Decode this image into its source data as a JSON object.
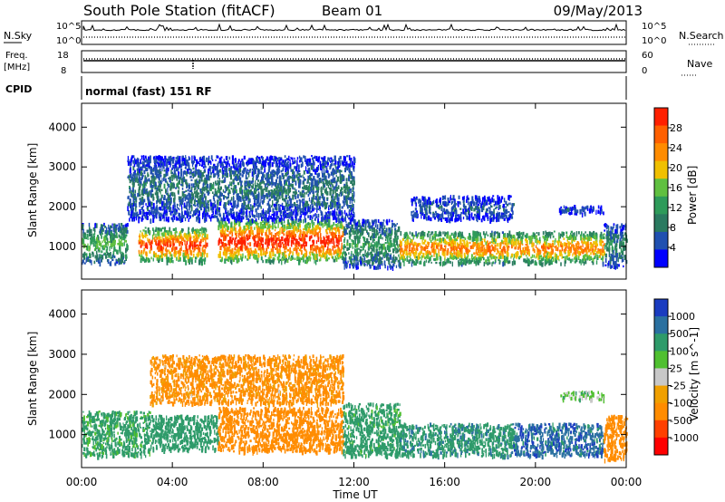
{
  "header": {
    "title": "South Pole Station (fitACF)",
    "beam": "Beam 01",
    "date": "09/May/2013"
  },
  "status_panels": {
    "nsky_label": "N.Sky",
    "nsearch_label": "N.Search",
    "noise_ticks": [
      "10^5",
      "10^0"
    ],
    "freq_label_1": "Freq.",
    "freq_label_2": "[MHz]",
    "freq_ticks": [
      "18",
      "8"
    ],
    "nave_label": "Nave",
    "nave_ticks": [
      "60",
      "0"
    ],
    "cpid_label": "CPID",
    "cpid_value": "normal (fast) 151 RF"
  },
  "x_axis": {
    "label": "Time UT",
    "ticks": [
      "00:00",
      "04:00",
      "08:00",
      "12:00",
      "16:00",
      "20:00",
      "00:00"
    ]
  },
  "colors": {
    "power_scale": [
      "#0000ff",
      "#2050b0",
      "#2a7a60",
      "#2e9b5a",
      "#60c040",
      "#f0c000",
      "#ff8c00",
      "#ff6000",
      "#ff2000"
    ],
    "velocity_scale": [
      "#ff0000",
      "#ff4000",
      "#ff8c00",
      "#f0a000",
      "#c8c8c8",
      "#50c030",
      "#2e9b6a",
      "#2a70a0",
      "#1a3cc0"
    ]
  },
  "chart_data": [
    {
      "type": "heatmap",
      "name": "power",
      "ylabel": "Slant Range [km]",
      "xlabel": "Time UT",
      "x_range_hours": [
        0,
        24
      ],
      "ylim": [
        180,
        4600
      ],
      "y_ticks": [
        "1000",
        "2000",
        "3000",
        "4000"
      ],
      "colorbar": {
        "label": "Power [dB]",
        "ticks": [
          "28",
          "24",
          "20",
          "16",
          "12",
          "8",
          "4"
        ],
        "range": [
          0,
          32
        ]
      },
      "echo_bands": [
        {
          "t_start": 0.0,
          "t_end": 2.0,
          "range_low": 600,
          "range_high": 1600,
          "power_db": 14
        },
        {
          "t_start": 2.5,
          "t_end": 5.5,
          "range_low": 650,
          "range_high": 1500,
          "power_db": 28
        },
        {
          "t_start": 6.0,
          "t_end": 11.5,
          "range_low": 650,
          "range_high": 1700,
          "power_db": 30
        },
        {
          "t_start": 11.5,
          "t_end": 14.0,
          "range_low": 500,
          "range_high": 1700,
          "power_db": 12
        },
        {
          "t_start": 14.0,
          "t_end": 23.0,
          "range_low": 600,
          "range_high": 1400,
          "power_db": 24
        },
        {
          "t_start": 23.0,
          "t_end": 24.0,
          "range_low": 500,
          "range_high": 1600,
          "power_db": 10
        },
        {
          "t_start": 2.0,
          "t_end": 12.0,
          "range_low": 1700,
          "range_high": 3300,
          "power_db": 8
        },
        {
          "t_start": 14.5,
          "t_end": 19.0,
          "range_low": 1700,
          "range_high": 2300,
          "power_db": 6
        },
        {
          "t_start": 21.0,
          "t_end": 23.0,
          "range_low": 1850,
          "range_high": 2050,
          "power_db": 5
        }
      ]
    },
    {
      "type": "heatmap",
      "name": "velocity",
      "ylabel": "Slant Range [km]",
      "xlabel": "Time UT",
      "x_range_hours": [
        0,
        24
      ],
      "ylim": [
        180,
        4600
      ],
      "y_ticks": [
        "1000",
        "2000",
        "3000",
        "4000"
      ],
      "colorbar": {
        "label": "Velocity [m s^-1]",
        "ticks": [
          "1000",
          "500",
          "100",
          "25",
          "-25",
          "-100",
          "-500",
          "-1000"
        ]
      },
      "echo_bands": [
        {
          "t_start": 0.0,
          "t_end": 3.0,
          "range_low": 500,
          "range_high": 1600,
          "velocity": 150
        },
        {
          "t_start": 3.0,
          "t_end": 6.0,
          "range_low": 650,
          "range_high": 1500,
          "velocity": 300
        },
        {
          "t_start": 6.0,
          "t_end": 11.5,
          "range_low": 600,
          "range_high": 1700,
          "velocity": -300
        },
        {
          "t_start": 11.5,
          "t_end": 14.0,
          "range_low": 500,
          "range_high": 1800,
          "velocity": 200
        },
        {
          "t_start": 14.0,
          "t_end": 19.0,
          "range_low": 500,
          "range_high": 1300,
          "velocity": 400
        },
        {
          "t_start": 19.0,
          "t_end": 23.0,
          "range_low": 500,
          "range_high": 1300,
          "velocity": 800
        },
        {
          "t_start": 23.0,
          "t_end": 24.0,
          "range_low": 400,
          "range_high": 1500,
          "velocity": -300
        },
        {
          "t_start": 3.0,
          "t_end": 11.5,
          "range_low": 1800,
          "range_high": 3000,
          "velocity": -150
        },
        {
          "t_start": 21.0,
          "t_end": 23.0,
          "range_low": 1900,
          "range_high": 2100,
          "velocity": 50
        }
      ]
    }
  ]
}
